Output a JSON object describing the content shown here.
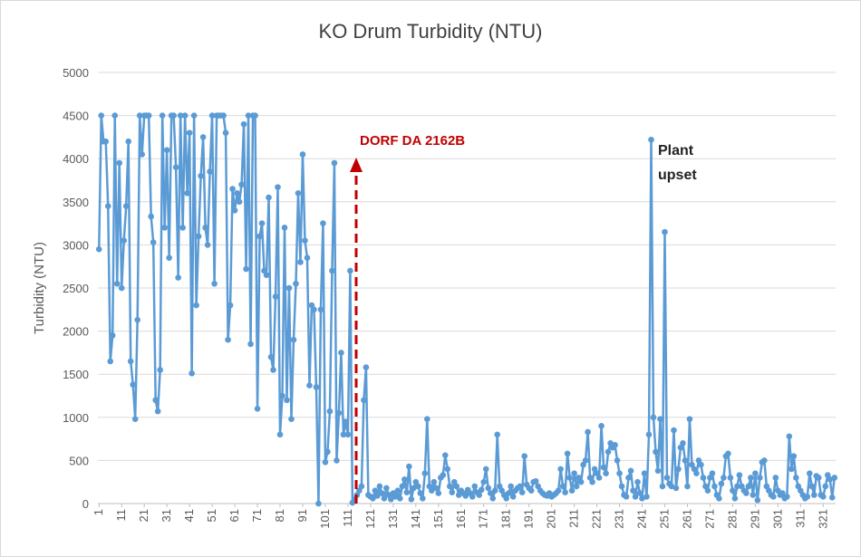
{
  "chart_data": {
    "type": "line",
    "title": "KO Drum Turbidity (NTU)",
    "y_label": "Turbidity (NTU)",
    "ylim": [
      0,
      5000
    ],
    "yticks": [
      0,
      500,
      1000,
      1500,
      2000,
      2500,
      3000,
      3500,
      4000,
      4500,
      5000
    ],
    "xlim": [
      0.5,
      326.5
    ],
    "xticks": [
      1,
      11,
      21,
      31,
      41,
      51,
      61,
      71,
      81,
      91,
      101,
      111,
      121,
      131,
      141,
      151,
      161,
      171,
      181,
      191,
      201,
      211,
      221,
      231,
      241,
      251,
      261,
      271,
      281,
      291,
      301,
      311,
      321
    ],
    "grid": true,
    "annotations": [
      {
        "text": "DORF DA 2162B",
        "color": "#c00000"
      },
      {
        "lines": [
          "Plant",
          "upset"
        ],
        "color": "#222222"
      }
    ],
    "x": [
      1,
      2,
      3,
      4,
      5,
      6,
      7,
      8,
      9,
      10,
      11,
      12,
      13,
      14,
      15,
      16,
      17,
      18,
      19,
      20,
      21,
      22,
      23,
      24,
      25,
      26,
      27,
      28,
      29,
      30,
      31,
      32,
      33,
      34,
      35,
      36,
      37,
      38,
      39,
      40,
      41,
      42,
      43,
      44,
      45,
      46,
      47,
      48,
      49,
      50,
      51,
      52,
      53,
      54,
      55,
      56,
      57,
      58,
      59,
      60,
      61,
      62,
      63,
      64,
      65,
      66,
      67,
      68,
      69,
      70,
      71,
      72,
      73,
      74,
      75,
      76,
      77,
      78,
      79,
      80,
      81,
      82,
      83,
      84,
      85,
      86,
      87,
      88,
      89,
      90,
      91,
      92,
      93,
      94,
      95,
      96,
      97,
      98,
      99,
      100,
      101,
      102,
      103,
      104,
      105,
      106,
      107,
      108,
      109,
      110,
      111,
      112,
      113,
      114,
      115,
      116,
      117,
      118,
      119,
      120,
      121,
      122,
      123,
      124,
      125,
      126,
      127,
      128,
      129,
      130,
      131,
      132,
      133,
      134,
      135,
      136,
      137,
      138,
      139,
      140,
      141,
      142,
      143,
      144,
      145,
      146,
      147,
      148,
      149,
      150,
      151,
      152,
      153,
      154,
      155,
      156,
      157,
      158,
      159,
      160,
      161,
      162,
      163,
      164,
      165,
      166,
      167,
      168,
      169,
      170,
      171,
      172,
      173,
      174,
      175,
      176,
      177,
      178,
      179,
      180,
      181,
      182,
      183,
      184,
      185,
      186,
      187,
      188,
      189,
      190,
      191,
      192,
      193,
      194,
      195,
      196,
      197,
      198,
      199,
      200,
      201,
      202,
      203,
      204,
      205,
      206,
      207,
      208,
      209,
      210,
      211,
      212,
      213,
      214,
      215,
      216,
      217,
      218,
      219,
      220,
      221,
      222,
      223,
      224,
      225,
      226,
      227,
      228,
      229,
      230,
      231,
      232,
      233,
      234,
      235,
      236,
      237,
      238,
      239,
      240,
      241,
      242,
      243,
      244,
      245,
      246,
      247,
      248,
      249,
      250,
      251,
      252,
      253,
      254,
      255,
      256,
      257,
      258,
      259,
      260,
      261,
      262,
      263,
      264,
      265,
      266,
      267,
      268,
      269,
      270,
      271,
      272,
      273,
      274,
      275,
      276,
      277,
      278,
      279,
      280,
      281,
      282,
      283,
      284,
      285,
      286,
      287,
      288,
      289,
      290,
      291,
      292,
      293,
      294,
      295,
      296,
      297,
      298,
      299,
      300,
      301,
      302,
      303,
      304,
      305,
      306,
      307,
      308,
      309,
      310,
      311,
      312,
      313,
      314,
      315,
      316,
      317,
      318,
      319,
      320,
      321,
      322,
      323,
      324,
      325,
      326
    ],
    "series": [
      {
        "color": "#5b9bd5",
        "values": [
          2950,
          4500,
          4200,
          4200,
          3450,
          1650,
          1950,
          4500,
          2550,
          3950,
          2500,
          3050,
          3450,
          4200,
          1650,
          1380,
          980,
          2130,
          4500,
          4050,
          4500,
          4500,
          4500,
          3330,
          3030,
          1200,
          1070,
          1550,
          4500,
          3200,
          4100,
          2850,
          4500,
          4500,
          3900,
          2620,
          4500,
          3200,
          4500,
          3600,
          4300,
          1510,
          4500,
          2300,
          3100,
          3800,
          4250,
          3200,
          3000,
          3850,
          4500,
          2550,
          4500,
          4500,
          4500,
          4500,
          4300,
          1900,
          2300,
          3650,
          3400,
          3600,
          3500,
          3700,
          4400,
          2720,
          4500,
          1850,
          4500,
          4500,
          1100,
          3100,
          3250,
          2700,
          2650,
          3550,
          1700,
          1550,
          2400,
          3670,
          800,
          1250,
          3200,
          1200,
          2500,
          980,
          1900,
          2550,
          3600,
          2800,
          4050,
          3050,
          2850,
          1370,
          2300,
          2250,
          1350,
          0,
          2250,
          3250,
          480,
          600,
          1070,
          2700,
          3950,
          500,
          1050,
          1750,
          800,
          950,
          800,
          2700,
          10,
          50,
          100,
          150,
          200,
          1200,
          1580,
          100,
          80,
          60,
          150,
          90,
          200,
          120,
          60,
          180,
          100,
          50,
          120,
          80,
          150,
          60,
          200,
          280,
          130,
          430,
          50,
          180,
          250,
          200,
          120,
          60,
          350,
          980,
          200,
          150,
          250,
          180,
          120,
          300,
          330,
          560,
          400,
          200,
          130,
          250,
          200,
          100,
          150,
          120,
          90,
          160,
          120,
          80,
          200,
          130,
          100,
          160,
          250,
          400,
          180,
          120,
          60,
          150,
          800,
          200,
          150,
          100,
          60,
          120,
          200,
          80,
          150,
          180,
          200,
          130,
          550,
          220,
          180,
          150,
          250,
          260,
          200,
          150,
          120,
          100,
          90,
          120,
          80,
          100,
          120,
          150,
          400,
          200,
          130,
          580,
          300,
          150,
          350,
          200,
          300,
          250,
          450,
          500,
          830,
          300,
          250,
          400,
          350,
          300,
          900,
          420,
          350,
          600,
          700,
          650,
          680,
          500,
          350,
          200,
          100,
          80,
          300,
          380,
          150,
          80,
          250,
          120,
          60,
          350,
          80,
          800,
          4220,
          1000,
          600,
          380,
          980,
          200,
          3150,
          300,
          230,
          200,
          850,
          180,
          400,
          650,
          700,
          500,
          200,
          980,
          450,
          400,
          350,
          500,
          450,
          300,
          200,
          150,
          300,
          350,
          200,
          100,
          60,
          230,
          300,
          550,
          580,
          300,
          150,
          60,
          200,
          330,
          200,
          150,
          120,
          200,
          300,
          100,
          350,
          40,
          300,
          480,
          500,
          200,
          150,
          100,
          80,
          300,
          150,
          100,
          120,
          60,
          80,
          780,
          400,
          550,
          300,
          200,
          150,
          100,
          60,
          80,
          350,
          200,
          100,
          320,
          300,
          100,
          80,
          200,
          330,
          280,
          70,
          300
        ]
      }
    ]
  }
}
